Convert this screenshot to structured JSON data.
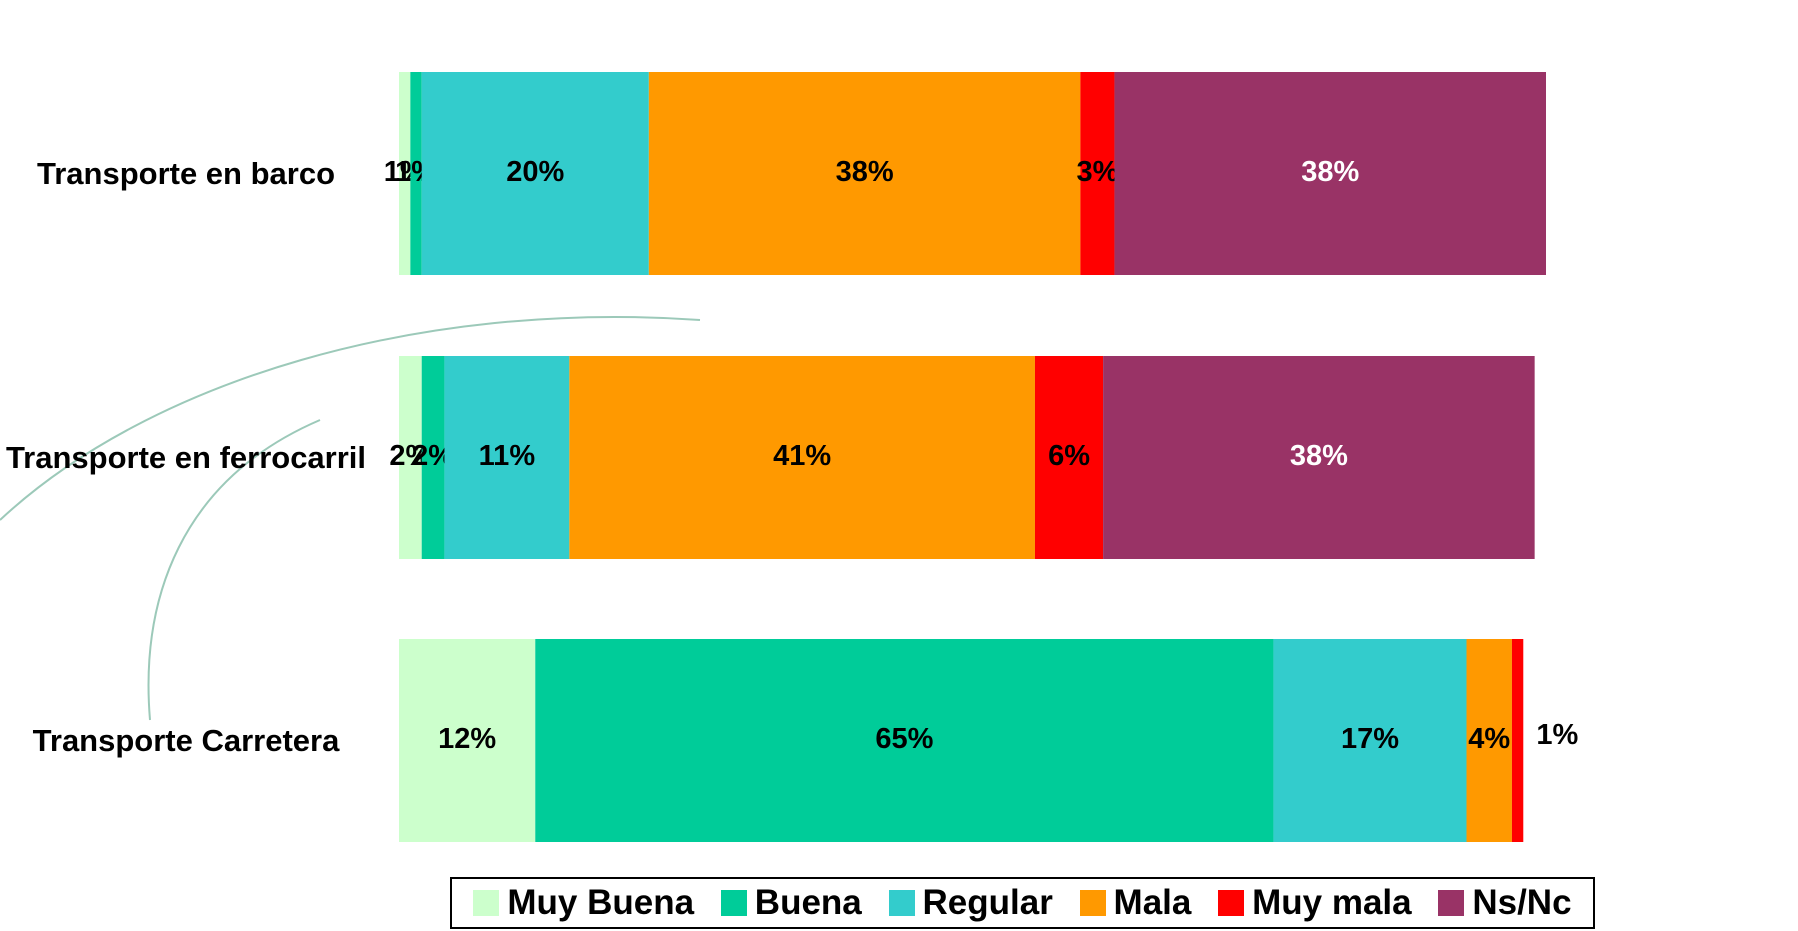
{
  "chart_data": {
    "type": "stacked-bar-horizontal",
    "categories": [
      "Transporte en barco",
      "Transporte en ferrocarril",
      "Transporte Carretera"
    ],
    "series": [
      {
        "name": "Muy Buena",
        "color": "#ccffcc",
        "values": [
          1,
          2,
          12
        ],
        "value_labels": [
          "1%",
          "2%",
          "12%"
        ]
      },
      {
        "name": "Buena",
        "color": "#00cc99",
        "values": [
          1,
          2,
          65
        ],
        "value_labels": [
          "1%",
          "2%",
          "65%"
        ]
      },
      {
        "name": "Regular",
        "color": "#33cccc",
        "values": [
          20,
          11,
          17
        ],
        "value_labels": [
          "20%",
          "11%",
          "17%"
        ]
      },
      {
        "name": "Mala",
        "color": "#ff9900",
        "values": [
          38,
          41,
          4
        ],
        "value_labels": [
          "38%",
          "41%",
          "4%"
        ]
      },
      {
        "name": "Muy mala",
        "color": "#ff0000",
        "values": [
          3,
          6,
          1
        ],
        "value_labels": [
          "3%",
          "6%",
          "1%"
        ]
      },
      {
        "name": "Ns/Nc",
        "color": "#993366",
        "values": [
          38,
          38,
          null
        ],
        "value_labels": [
          "38%",
          "38%",
          null
        ]
      }
    ]
  }
}
